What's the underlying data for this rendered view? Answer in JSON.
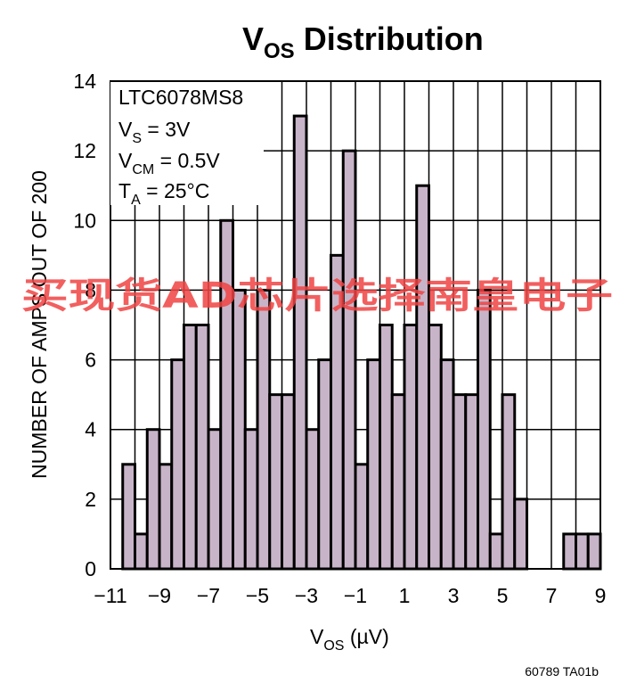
{
  "chart_data": {
    "type": "bar",
    "title_main": "V",
    "title_sub": "OS",
    "title_rest": " Distribution",
    "xlabel_main": "V",
    "xlabel_sub": "OS",
    "xlabel_rest": " (µV)",
    "ylabel": "NUMBER OF AMPS OUT OF 200",
    "xlim": [
      -11,
      9
    ],
    "ylim": [
      0,
      14
    ],
    "grid": true,
    "x_ticks": [
      -11,
      -9,
      -7,
      -5,
      -3,
      -1,
      1,
      3,
      5,
      7,
      9
    ],
    "x_tick_labels": [
      "−11",
      "−9",
      "−7",
      "−5",
      "−3",
      "−1",
      "1",
      "3",
      "5",
      "7",
      "9"
    ],
    "y_ticks": [
      0,
      2,
      4,
      6,
      8,
      10,
      12,
      14
    ],
    "y_tick_labels": [
      "0",
      "2",
      "4",
      "6",
      "8",
      "10",
      "12",
      "14"
    ],
    "bin_width": 0.5,
    "bin_starts": [
      -10.5,
      -10.0,
      -9.5,
      -9.0,
      -8.5,
      -8.0,
      -7.5,
      -7.0,
      -6.5,
      -6.0,
      -5.5,
      -5.0,
      -4.5,
      -4.0,
      -3.5,
      -3.0,
      -2.5,
      -2.0,
      -1.5,
      -1.0,
      -0.5,
      0.0,
      0.5,
      1.0,
      1.5,
      2.0,
      2.5,
      3.0,
      3.5,
      4.0,
      4.5,
      5.0,
      5.5,
      6.0,
      6.5,
      7.0,
      7.5,
      8.0,
      8.5
    ],
    "values": [
      3,
      1,
      4,
      3,
      6,
      7,
      7,
      4,
      10,
      8,
      4,
      8,
      5,
      5,
      13,
      4,
      6,
      9,
      12,
      3,
      6,
      7,
      5,
      7,
      11,
      7,
      6,
      5,
      5,
      8,
      1,
      5,
      2,
      0,
      0,
      0,
      1,
      1,
      1
    ],
    "bar_color": "#c8b4c8",
    "edge_color": "#000000",
    "annotations": [
      {
        "main": "LTC6078MS8",
        "sub": "",
        "rest": ""
      },
      {
        "main": "V",
        "sub": "S",
        "rest": " = 3V"
      },
      {
        "main": "V",
        "sub": "CM",
        "rest": " = 0.5V"
      },
      {
        "main": "T",
        "sub": "A",
        "rest": " = 25°C"
      }
    ]
  },
  "footnote": "60789 TA01b",
  "watermark": "买现货AD芯片选择南皇电子"
}
